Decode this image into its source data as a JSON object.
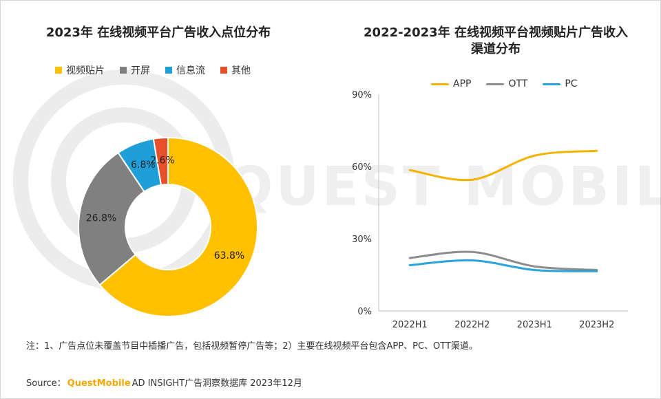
{
  "watermark": "QUEST MOBILE",
  "colors": {
    "video_patch": "#FFC000",
    "open_screen": "#808080",
    "feed": "#1F9FD8",
    "other": "#E8502B",
    "app": "#F5B300",
    "ott": "#8C8C8C",
    "pc": "#2AA3DC"
  },
  "chart_data": [
    {
      "type": "pie",
      "subtype": "donut",
      "title": "2023年 在线视频平台广告收入点位分布",
      "categories": [
        "视频贴片",
        "开屏",
        "信息流",
        "其他"
      ],
      "values": [
        63.8,
        26.8,
        6.8,
        2.6
      ],
      "labels": [
        "63.8%",
        "26.8%",
        "6.8%",
        "2.6%"
      ],
      "legend_position": "top"
    },
    {
      "type": "line",
      "title": "2022-2023年 在线视频平台视频贴片广告收入渠道分布",
      "categories": [
        "2022H1",
        "2022H2",
        "2023H1",
        "2023H2"
      ],
      "series": [
        {
          "name": "APP",
          "values": [
            58.5,
            54.5,
            64.5,
            66.5
          ]
        },
        {
          "name": "OTT",
          "values": [
            22,
            24.5,
            18.5,
            17
          ]
        },
        {
          "name": "PC",
          "values": [
            19,
            21,
            17,
            16.5
          ]
        }
      ],
      "ylim": [
        0,
        90
      ],
      "yticks": [
        "0%",
        "30%",
        "60%",
        "90%"
      ],
      "ytick_values": [
        0,
        30,
        60,
        90
      ],
      "grid": false,
      "legend_position": "top"
    }
  ],
  "note": "注：1、广告点位未覆盖节目中插播广告，包括视频暂停广告等；2）主要在线视频平台包含APP、PC、OTT渠道。",
  "source": {
    "prefix": "Source：",
    "brand": "QuestMobile",
    "suffix": "AD INSIGHT广告洞察数据库 2023年12月"
  }
}
